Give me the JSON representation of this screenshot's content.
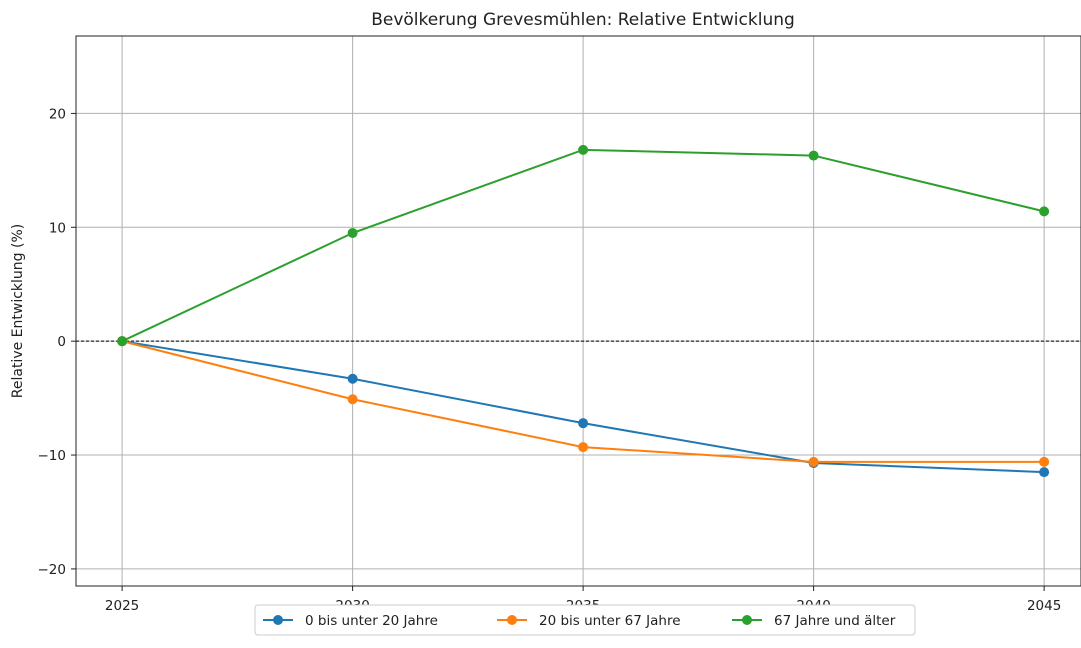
{
  "chart_data": {
    "type": "line",
    "title": "Bevölkerung Grevesmühlen: Relative Entwicklung",
    "xlabel": "",
    "ylabel": "Relative Entwicklung (%)",
    "x": [
      2025,
      2030,
      2035,
      2040,
      2045
    ],
    "x_tick_labels": [
      "2025",
      "2030",
      "2035",
      "2040",
      "2045"
    ],
    "xlim": [
      2024,
      2045.8
    ],
    "ylim": [
      -21.5,
      26.8
    ],
    "y_ticks": [
      -20,
      -10,
      0,
      10,
      20
    ],
    "y_tick_labels": [
      "−20",
      "−10",
      "0",
      "10",
      "20"
    ],
    "grid": true,
    "reference_line": {
      "y": 0,
      "style": "dashed",
      "color": "#000000"
    },
    "legend_position": "bottom-center, below plot",
    "series": [
      {
        "name": "0 bis unter 20 Jahre",
        "color": "#1f77b4",
        "values": [
          0,
          -3.3,
          -7.2,
          -10.7,
          -11.5
        ]
      },
      {
        "name": "20 bis unter 67 Jahre",
        "color": "#ff7f0e",
        "values": [
          0,
          -5.1,
          -9.3,
          -10.6,
          -10.6
        ]
      },
      {
        "name": "67 Jahre und älter",
        "color": "#2ca02c",
        "values": [
          0,
          9.5,
          16.8,
          16.3,
          11.4
        ]
      }
    ]
  }
}
